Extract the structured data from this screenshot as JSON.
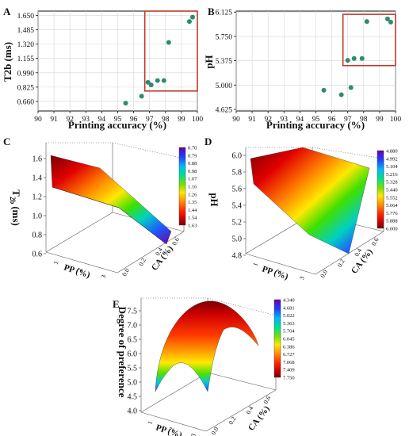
{
  "panels": [
    {
      "letter": "A",
      "type": "scatter",
      "xlabel": "Printing accuracy (%)",
      "ylabel": "T2b (ms)",
      "xlim": [
        90,
        100
      ],
      "ylim": [
        0.55,
        1.7
      ],
      "x_ticks": [
        "90",
        "91",
        "92",
        "93",
        "94",
        "95",
        "96",
        "97",
        "98",
        "99",
        "100"
      ],
      "y_ticks": [
        "0.660",
        "0.825",
        "0.990",
        "1.155",
        "1.320",
        "1.485",
        "1.650"
      ],
      "points": [
        [
          95.5,
          0.64
        ],
        [
          96.5,
          0.72
        ],
        [
          96.9,
          0.88
        ],
        [
          97.1,
          0.85
        ],
        [
          97.5,
          0.9
        ],
        [
          97.9,
          0.9
        ],
        [
          98.2,
          1.34
        ],
        [
          99.5,
          1.58
        ],
        [
          99.7,
          1.63
        ]
      ],
      "highlight": {
        "x": [
          96.7,
          100
        ],
        "y": [
          0.78,
          1.7
        ]
      },
      "colors": {
        "point": "#2e8b6e",
        "box": "#c0392b"
      }
    },
    {
      "letter": "B",
      "type": "scatter",
      "xlabel": "Printing accuracy (%)",
      "ylabel": "pH",
      "xlim": [
        90,
        100
      ],
      "ylim": [
        4.6,
        6.14
      ],
      "x_ticks": [
        "90",
        "91",
        "92",
        "93",
        "94",
        "95",
        "96",
        "97",
        "98",
        "99",
        "100"
      ],
      "y_ticks": [
        "4.625",
        "5.000",
        "5.375",
        "5.750",
        "6.125"
      ],
      "points": [
        [
          95.5,
          4.92
        ],
        [
          96.6,
          4.85
        ],
        [
          97.0,
          5.38
        ],
        [
          97.2,
          4.96
        ],
        [
          97.4,
          5.41
        ],
        [
          97.9,
          5.41
        ],
        [
          98.2,
          5.98
        ],
        [
          99.5,
          6.02
        ],
        [
          99.7,
          5.97
        ]
      ],
      "highlight": {
        "x": [
          96.7,
          100
        ],
        "y": [
          5.3,
          6.09
        ]
      },
      "colors": {
        "point": "#2e8b6e",
        "box": "#c0392b"
      }
    },
    {
      "letter": "C",
      "type": "surface3d",
      "zlabel_main": "T",
      "zlabel_sub": "2b",
      "zlabel_unit": "(ms)",
      "z_ticks": [
        "0.6",
        "0.8",
        "1.0",
        "1.2",
        "1.4",
        "1.6"
      ],
      "x_axis_label": "PP (%)",
      "y_axis_label": "CA (%)",
      "x_ticks": [
        "1",
        "2",
        "3"
      ],
      "y_ticks": [
        "0.0",
        "0.2",
        "0.4",
        "0.6"
      ],
      "colorbar": [
        "0.70",
        "0.79",
        "0.88",
        "0.98",
        "1.07",
        "1.16",
        "1.26",
        "1.35",
        "1.44",
        "1.54",
        "1.63"
      ]
    },
    {
      "letter": "D",
      "type": "surface3d",
      "zlabel_main": "pH",
      "z_ticks": [
        "4.8",
        "5.0",
        "5.2",
        "5.4",
        "5.6",
        "5.8",
        "6.0"
      ],
      "x_axis_label": "PP (%)",
      "y_axis_label": "CA (%)",
      "x_ticks": [
        "1",
        "2",
        "3"
      ],
      "y_ticks": [
        "0.0",
        "0.2",
        "0.4",
        "0.6"
      ],
      "colorbar": [
        "4.880",
        "4.992",
        "5.104",
        "5.216",
        "5.328",
        "5.440",
        "5.552",
        "5.664",
        "5.776",
        "5.888",
        "6.000"
      ]
    },
    {
      "letter": "E",
      "type": "surface3d",
      "zlabel_main": "Degree of preference",
      "z_ticks": [
        "4.0",
        "4.5",
        "5.0",
        "5.5",
        "6.0",
        "6.5",
        "7.0",
        "7.5"
      ],
      "x_axis_label": "PP (%)",
      "y_axis_label": "CA (%)",
      "x_ticks": [
        "1",
        "2",
        "3"
      ],
      "y_ticks": [
        "0.0",
        "0.2",
        "0.4",
        "0.6"
      ],
      "colorbar": [
        "4.340",
        "4.681",
        "5.022",
        "5.363",
        "5.704",
        "6.045",
        "6.386",
        "6.727",
        "7.068",
        "7.409",
        "7.750"
      ]
    }
  ]
}
